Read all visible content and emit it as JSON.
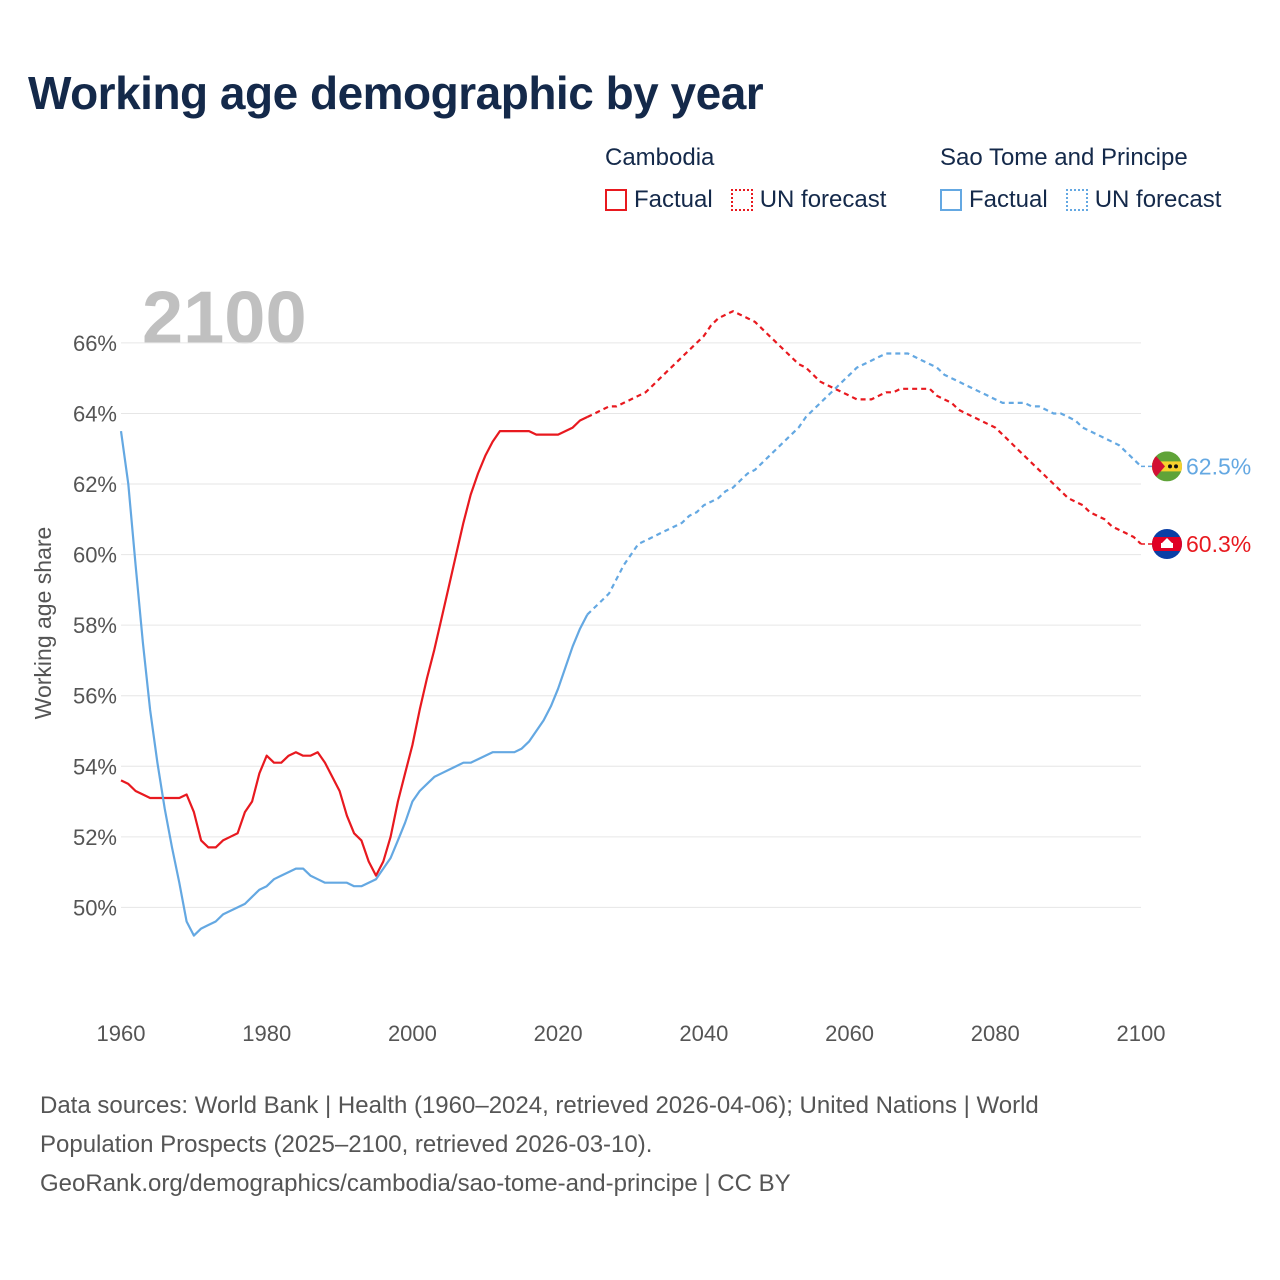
{
  "page": {
    "title": "Working age demographic by year",
    "footer_line1": "Data sources: World Bank | Health (1960–2024, retrieved 2026-04-06); United Nations | World",
    "footer_line2": "Population Prospects (2025–2100, retrieved 2026-03-10).",
    "footer_line3": "GeoRank.org/demographics/cambodia/sao-tome-and-principe | CC BY"
  },
  "legend": {
    "cambodia": {
      "name": "Cambodia",
      "factual": "Factual",
      "forecast": "UN forecast"
    },
    "stp": {
      "name": "Sao Tome and Principe",
      "factual": "Factual",
      "forecast": "UN forecast"
    }
  },
  "colors": {
    "cambodia": "#e8191f",
    "stp": "#64a8e2",
    "grid": "#e6e6e6"
  },
  "chart_data": {
    "type": "line",
    "title": "Working age demographic by year",
    "xlabel": "",
    "ylabel": "Working age share",
    "xlim": [
      1960,
      2100
    ],
    "ylim": [
      47.8,
      67.5
    ],
    "xticks": [
      1960,
      1980,
      2000,
      2020,
      2040,
      2060,
      2080,
      2100
    ],
    "xtick_labels": [
      "1960",
      "1980",
      "2000",
      "2020",
      "2040",
      "2060",
      "2080",
      "2100"
    ],
    "yticks": [
      50,
      52,
      54,
      56,
      58,
      60,
      62,
      64,
      66
    ],
    "ytick_labels": [
      "50%",
      "52%",
      "54%",
      "56%",
      "58%",
      "60%",
      "62%",
      "64%",
      "66%"
    ],
    "year_label": "2100",
    "forecast_start": 2024,
    "series": [
      {
        "name": "Cambodia",
        "color_key": "cambodia",
        "end_label": "60.3%",
        "points": [
          [
            1960,
            53.6
          ],
          [
            1961,
            53.5
          ],
          [
            1962,
            53.3
          ],
          [
            1963,
            53.2
          ],
          [
            1964,
            53.1
          ],
          [
            1965,
            53.1
          ],
          [
            1966,
            53.1
          ],
          [
            1967,
            53.1
          ],
          [
            1968,
            53.1
          ],
          [
            1969,
            53.2
          ],
          [
            1970,
            52.7
          ],
          [
            1971,
            51.9
          ],
          [
            1972,
            51.7
          ],
          [
            1973,
            51.7
          ],
          [
            1974,
            51.9
          ],
          [
            1975,
            52.0
          ],
          [
            1976,
            52.1
          ],
          [
            1977,
            52.7
          ],
          [
            1978,
            53.0
          ],
          [
            1979,
            53.8
          ],
          [
            1980,
            54.3
          ],
          [
            1981,
            54.1
          ],
          [
            1982,
            54.1
          ],
          [
            1983,
            54.3
          ],
          [
            1984,
            54.4
          ],
          [
            1985,
            54.3
          ],
          [
            1986,
            54.3
          ],
          [
            1987,
            54.4
          ],
          [
            1988,
            54.1
          ],
          [
            1989,
            53.7
          ],
          [
            1990,
            53.3
          ],
          [
            1991,
            52.6
          ],
          [
            1992,
            52.1
          ],
          [
            1993,
            51.9
          ],
          [
            1994,
            51.3
          ],
          [
            1995,
            50.9
          ],
          [
            1996,
            51.3
          ],
          [
            1997,
            52.0
          ],
          [
            1998,
            53.0
          ],
          [
            1999,
            53.8
          ],
          [
            2000,
            54.6
          ],
          [
            2001,
            55.6
          ],
          [
            2002,
            56.5
          ],
          [
            2003,
            57.3
          ],
          [
            2004,
            58.2
          ],
          [
            2005,
            59.1
          ],
          [
            2006,
            60.0
          ],
          [
            2007,
            60.9
          ],
          [
            2008,
            61.7
          ],
          [
            2009,
            62.3
          ],
          [
            2010,
            62.8
          ],
          [
            2011,
            63.2
          ],
          [
            2012,
            63.5
          ],
          [
            2013,
            63.5
          ],
          [
            2014,
            63.5
          ],
          [
            2015,
            63.5
          ],
          [
            2016,
            63.5
          ],
          [
            2017,
            63.4
          ],
          [
            2018,
            63.4
          ],
          [
            2019,
            63.4
          ],
          [
            2020,
            63.4
          ],
          [
            2021,
            63.5
          ],
          [
            2022,
            63.6
          ],
          [
            2023,
            63.8
          ],
          [
            2024,
            63.9
          ],
          [
            2025,
            64.0
          ],
          [
            2026,
            64.1
          ],
          [
            2027,
            64.2
          ],
          [
            2028,
            64.2
          ],
          [
            2029,
            64.3
          ],
          [
            2030,
            64.4
          ],
          [
            2031,
            64.5
          ],
          [
            2032,
            64.6
          ],
          [
            2033,
            64.8
          ],
          [
            2034,
            65.0
          ],
          [
            2035,
            65.2
          ],
          [
            2036,
            65.4
          ],
          [
            2037,
            65.6
          ],
          [
            2038,
            65.8
          ],
          [
            2039,
            66.0
          ],
          [
            2040,
            66.2
          ],
          [
            2041,
            66.5
          ],
          [
            2042,
            66.7
          ],
          [
            2043,
            66.8
          ],
          [
            2044,
            66.9
          ],
          [
            2045,
            66.8
          ],
          [
            2046,
            66.7
          ],
          [
            2047,
            66.6
          ],
          [
            2048,
            66.4
          ],
          [
            2049,
            66.2
          ],
          [
            2050,
            66.0
          ],
          [
            2051,
            65.8
          ],
          [
            2052,
            65.6
          ],
          [
            2053,
            65.4
          ],
          [
            2054,
            65.3
          ],
          [
            2055,
            65.1
          ],
          [
            2056,
            64.9
          ],
          [
            2057,
            64.8
          ],
          [
            2058,
            64.7
          ],
          [
            2059,
            64.6
          ],
          [
            2060,
            64.5
          ],
          [
            2061,
            64.4
          ],
          [
            2062,
            64.4
          ],
          [
            2063,
            64.4
          ],
          [
            2064,
            64.5
          ],
          [
            2065,
            64.6
          ],
          [
            2066,
            64.6
          ],
          [
            2067,
            64.7
          ],
          [
            2068,
            64.7
          ],
          [
            2069,
            64.7
          ],
          [
            2070,
            64.7
          ],
          [
            2071,
            64.7
          ],
          [
            2072,
            64.5
          ],
          [
            2073,
            64.4
          ],
          [
            2074,
            64.3
          ],
          [
            2075,
            64.1
          ],
          [
            2076,
            64.0
          ],
          [
            2077,
            63.9
          ],
          [
            2078,
            63.8
          ],
          [
            2079,
            63.7
          ],
          [
            2080,
            63.6
          ],
          [
            2081,
            63.4
          ],
          [
            2082,
            63.2
          ],
          [
            2083,
            63.0
          ],
          [
            2084,
            62.8
          ],
          [
            2085,
            62.6
          ],
          [
            2086,
            62.4
          ],
          [
            2087,
            62.2
          ],
          [
            2088,
            62.0
          ],
          [
            2089,
            61.8
          ],
          [
            2090,
            61.6
          ],
          [
            2091,
            61.5
          ],
          [
            2092,
            61.4
          ],
          [
            2093,
            61.2
          ],
          [
            2094,
            61.1
          ],
          [
            2095,
            61.0
          ],
          [
            2096,
            60.8
          ],
          [
            2097,
            60.7
          ],
          [
            2098,
            60.6
          ],
          [
            2099,
            60.5
          ],
          [
            2100,
            60.3
          ]
        ]
      },
      {
        "name": "Sao Tome and Principe",
        "color_key": "stp",
        "end_label": "62.5%",
        "points": [
          [
            1960,
            63.5
          ],
          [
            1961,
            62.0
          ],
          [
            1962,
            59.7
          ],
          [
            1963,
            57.5
          ],
          [
            1964,
            55.6
          ],
          [
            1965,
            54.1
          ],
          [
            1966,
            52.8
          ],
          [
            1967,
            51.7
          ],
          [
            1968,
            50.7
          ],
          [
            1969,
            49.6
          ],
          [
            1970,
            49.2
          ],
          [
            1971,
            49.4
          ],
          [
            1972,
            49.5
          ],
          [
            1973,
            49.6
          ],
          [
            1974,
            49.8
          ],
          [
            1975,
            49.9
          ],
          [
            1976,
            50.0
          ],
          [
            1977,
            50.1
          ],
          [
            1978,
            50.3
          ],
          [
            1979,
            50.5
          ],
          [
            1980,
            50.6
          ],
          [
            1981,
            50.8
          ],
          [
            1982,
            50.9
          ],
          [
            1983,
            51.0
          ],
          [
            1984,
            51.1
          ],
          [
            1985,
            51.1
          ],
          [
            1986,
            50.9
          ],
          [
            1987,
            50.8
          ],
          [
            1988,
            50.7
          ],
          [
            1989,
            50.7
          ],
          [
            1990,
            50.7
          ],
          [
            1991,
            50.7
          ],
          [
            1992,
            50.6
          ],
          [
            1993,
            50.6
          ],
          [
            1994,
            50.7
          ],
          [
            1995,
            50.8
          ],
          [
            1996,
            51.1
          ],
          [
            1997,
            51.4
          ],
          [
            1998,
            51.9
          ],
          [
            1999,
            52.4
          ],
          [
            2000,
            53.0
          ],
          [
            2001,
            53.3
          ],
          [
            2002,
            53.5
          ],
          [
            2003,
            53.7
          ],
          [
            2004,
            53.8
          ],
          [
            2005,
            53.9
          ],
          [
            2006,
            54.0
          ],
          [
            2007,
            54.1
          ],
          [
            2008,
            54.1
          ],
          [
            2009,
            54.2
          ],
          [
            2010,
            54.3
          ],
          [
            2011,
            54.4
          ],
          [
            2012,
            54.4
          ],
          [
            2013,
            54.4
          ],
          [
            2014,
            54.4
          ],
          [
            2015,
            54.5
          ],
          [
            2016,
            54.7
          ],
          [
            2017,
            55.0
          ],
          [
            2018,
            55.3
          ],
          [
            2019,
            55.7
          ],
          [
            2020,
            56.2
          ],
          [
            2021,
            56.8
          ],
          [
            2022,
            57.4
          ],
          [
            2023,
            57.9
          ],
          [
            2024,
            58.3
          ],
          [
            2025,
            58.5
          ],
          [
            2026,
            58.7
          ],
          [
            2027,
            58.9
          ],
          [
            2028,
            59.3
          ],
          [
            2029,
            59.7
          ],
          [
            2030,
            60.0
          ],
          [
            2031,
            60.3
          ],
          [
            2032,
            60.4
          ],
          [
            2033,
            60.5
          ],
          [
            2034,
            60.6
          ],
          [
            2035,
            60.7
          ],
          [
            2036,
            60.8
          ],
          [
            2037,
            60.9
          ],
          [
            2038,
            61.1
          ],
          [
            2039,
            61.2
          ],
          [
            2040,
            61.4
          ],
          [
            2041,
            61.5
          ],
          [
            2042,
            61.6
          ],
          [
            2043,
            61.8
          ],
          [
            2044,
            61.9
          ],
          [
            2045,
            62.1
          ],
          [
            2046,
            62.3
          ],
          [
            2047,
            62.4
          ],
          [
            2048,
            62.6
          ],
          [
            2049,
            62.8
          ],
          [
            2050,
            63.0
          ],
          [
            2051,
            63.2
          ],
          [
            2052,
            63.4
          ],
          [
            2053,
            63.6
          ],
          [
            2054,
            63.9
          ],
          [
            2055,
            64.1
          ],
          [
            2056,
            64.3
          ],
          [
            2057,
            64.5
          ],
          [
            2058,
            64.7
          ],
          [
            2059,
            64.9
          ],
          [
            2060,
            65.1
          ],
          [
            2061,
            65.3
          ],
          [
            2062,
            65.4
          ],
          [
            2063,
            65.5
          ],
          [
            2064,
            65.6
          ],
          [
            2065,
            65.7
          ],
          [
            2066,
            65.7
          ],
          [
            2067,
            65.7
          ],
          [
            2068,
            65.7
          ],
          [
            2069,
            65.6
          ],
          [
            2070,
            65.5
          ],
          [
            2071,
            65.4
          ],
          [
            2072,
            65.3
          ],
          [
            2073,
            65.1
          ],
          [
            2074,
            65.0
          ],
          [
            2075,
            64.9
          ],
          [
            2076,
            64.8
          ],
          [
            2077,
            64.7
          ],
          [
            2078,
            64.6
          ],
          [
            2079,
            64.5
          ],
          [
            2080,
            64.4
          ],
          [
            2081,
            64.3
          ],
          [
            2082,
            64.3
          ],
          [
            2083,
            64.3
          ],
          [
            2084,
            64.3
          ],
          [
            2085,
            64.2
          ],
          [
            2086,
            64.2
          ],
          [
            2087,
            64.1
          ],
          [
            2088,
            64.0
          ],
          [
            2089,
            64.0
          ],
          [
            2090,
            63.9
          ],
          [
            2091,
            63.8
          ],
          [
            2092,
            63.6
          ],
          [
            2093,
            63.5
          ],
          [
            2094,
            63.4
          ],
          [
            2095,
            63.3
          ],
          [
            2096,
            63.2
          ],
          [
            2097,
            63.1
          ],
          [
            2098,
            62.9
          ],
          [
            2099,
            62.7
          ],
          [
            2100,
            62.5
          ]
        ]
      }
    ]
  }
}
